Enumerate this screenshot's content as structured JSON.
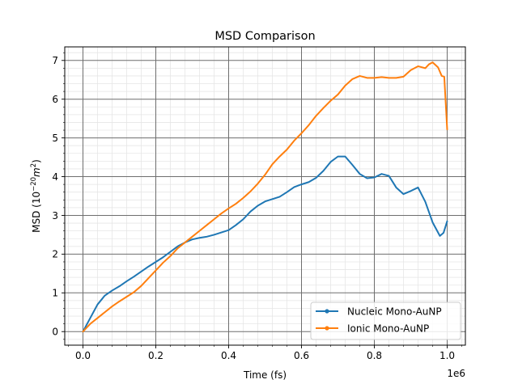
{
  "chart_data": {
    "type": "line",
    "title": "MSD Comparison",
    "xlabel": "Time (fs)",
    "ylabel_prefix": "MSD (10",
    "ylabel_exp": "−20",
    "ylabel_unit": "m",
    "ylabel_unit_exp": "2",
    "ylabel_suffix": ")",
    "x_offset_label": "1e6",
    "xlim": [
      -50000,
      1050000
    ],
    "ylim": [
      -0.35,
      7.35
    ],
    "xticks": [
      0,
      200000,
      400000,
      600000,
      800000,
      1000000
    ],
    "xtick_labels": [
      "0.0",
      "0.2",
      "0.4",
      "0.6",
      "0.8",
      "1.0"
    ],
    "yticks": [
      0,
      1,
      2,
      3,
      4,
      5,
      6,
      7
    ],
    "ytick_labels": [
      "0",
      "1",
      "2",
      "3",
      "4",
      "5",
      "6",
      "7"
    ],
    "grid": true,
    "minor_grid": true,
    "legend_position": "lower right",
    "series": [
      {
        "name": "Nucleic Mono-AuNP",
        "color": "#1f77b4",
        "x": [
          0,
          20000,
          40000,
          60000,
          80000,
          100000,
          120000,
          140000,
          160000,
          180000,
          200000,
          220000,
          240000,
          260000,
          280000,
          300000,
          320000,
          340000,
          360000,
          380000,
          400000,
          420000,
          440000,
          460000,
          480000,
          500000,
          520000,
          540000,
          560000,
          580000,
          600000,
          620000,
          640000,
          660000,
          680000,
          700000,
          720000,
          740000,
          760000,
          780000,
          800000,
          820000,
          840000,
          860000,
          880000,
          900000,
          920000,
          940000,
          960000,
          980000,
          990000,
          1000000
        ],
        "y": [
          0.0,
          0.35,
          0.7,
          0.93,
          1.06,
          1.17,
          1.3,
          1.42,
          1.55,
          1.68,
          1.8,
          1.92,
          2.06,
          2.2,
          2.3,
          2.38,
          2.42,
          2.45,
          2.5,
          2.56,
          2.62,
          2.75,
          2.9,
          3.1,
          3.25,
          3.36,
          3.42,
          3.48,
          3.6,
          3.73,
          3.8,
          3.86,
          3.97,
          4.15,
          4.38,
          4.52,
          4.52,
          4.3,
          4.07,
          3.96,
          3.98,
          4.07,
          4.02,
          3.72,
          3.55,
          3.63,
          3.72,
          3.35,
          2.82,
          2.47,
          2.55,
          2.85
        ]
      },
      {
        "name": "Ionic Mono-AuNP",
        "color": "#ff7f0e",
        "x": [
          0,
          20000,
          40000,
          60000,
          80000,
          100000,
          120000,
          140000,
          160000,
          180000,
          200000,
          220000,
          240000,
          260000,
          280000,
          300000,
          320000,
          340000,
          360000,
          380000,
          400000,
          420000,
          440000,
          460000,
          480000,
          500000,
          520000,
          540000,
          560000,
          580000,
          600000,
          620000,
          640000,
          660000,
          680000,
          700000,
          720000,
          740000,
          760000,
          780000,
          800000,
          820000,
          840000,
          860000,
          880000,
          900000,
          910000,
          920000,
          940000,
          950000,
          960000,
          975000,
          985000,
          992000,
          1000000
        ],
        "y": [
          0.0,
          0.2,
          0.35,
          0.5,
          0.65,
          0.78,
          0.9,
          1.02,
          1.18,
          1.38,
          1.58,
          1.78,
          1.95,
          2.15,
          2.3,
          2.45,
          2.6,
          2.75,
          2.9,
          3.05,
          3.18,
          3.3,
          3.45,
          3.62,
          3.82,
          4.05,
          4.32,
          4.52,
          4.7,
          4.93,
          5.12,
          5.33,
          5.57,
          5.77,
          5.96,
          6.12,
          6.35,
          6.52,
          6.6,
          6.55,
          6.55,
          6.57,
          6.55,
          6.55,
          6.58,
          6.75,
          6.8,
          6.85,
          6.8,
          6.9,
          6.95,
          6.82,
          6.6,
          6.58,
          5.22
        ]
      }
    ]
  }
}
